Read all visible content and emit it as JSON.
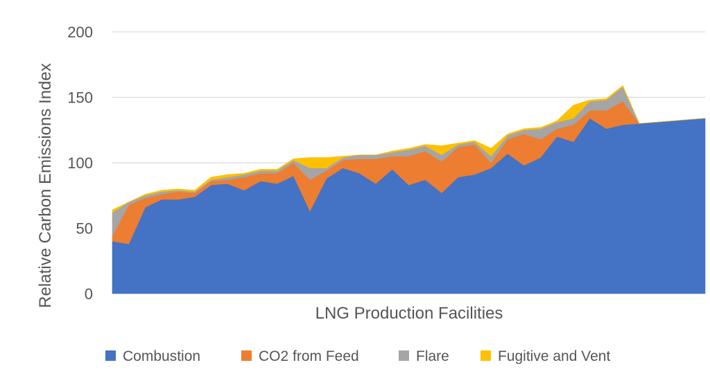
{
  "chart_data": {
    "type": "area",
    "stacked": true,
    "title": "",
    "xlabel": "LNG Production Facilities",
    "ylabel": "Relative Carbon Emissions Index",
    "ylim": [
      0,
      200
    ],
    "yticks": [
      0,
      50,
      100,
      150,
      200
    ],
    "grid": true,
    "legend_position": "bottom",
    "x": [
      1,
      2,
      3,
      4,
      5,
      6,
      7,
      8,
      9,
      10,
      11,
      12,
      13,
      14,
      15,
      16,
      17,
      18,
      19,
      20,
      21,
      22,
      23,
      24,
      25,
      26,
      27,
      28,
      29,
      30,
      31,
      32,
      33,
      34,
      35,
      36,
      37
    ],
    "series": [
      {
        "name": "Combustion",
        "color": "#4472C4",
        "values": [
          40,
          38,
          66,
          72,
          72,
          74,
          83,
          84,
          79,
          86,
          84,
          90,
          63,
          88,
          96,
          92,
          84,
          95,
          83,
          87,
          77,
          89,
          91,
          96,
          107,
          98,
          104,
          120,
          116,
          134,
          126,
          129,
          130,
          131,
          132,
          133,
          134
        ]
      },
      {
        "name": "CO2 from Feed",
        "color": "#ED7D31",
        "values": [
          4,
          30,
          7,
          4,
          6,
          3,
          3,
          3,
          10,
          6,
          8,
          10,
          24,
          6,
          6,
          11,
          19,
          10,
          22,
          22,
          24,
          23,
          23,
          4,
          11,
          24,
          14,
          6,
          13,
          6,
          14,
          18,
          0,
          0,
          0,
          0,
          0
        ]
      },
      {
        "name": "Flare",
        "color": "#A5A5A5",
        "values": [
          18,
          2,
          2,
          2,
          1,
          1,
          1,
          2,
          2,
          2,
          2,
          2,
          9,
          2,
          2,
          3,
          3,
          3,
          5,
          4,
          5,
          2,
          2,
          5,
          3,
          3,
          8,
          5,
          5,
          7,
          8,
          11,
          0,
          0,
          0,
          0,
          0
        ]
      },
      {
        "name": "Fugitive and Vent",
        "color": "#FFC000",
        "values": [
          2,
          0,
          1,
          1,
          1,
          1,
          2,
          2,
          1,
          1,
          1,
          1,
          8,
          8,
          1,
          0,
          0,
          1,
          1,
          1,
          7,
          1,
          1,
          6,
          1,
          1,
          1,
          1,
          10,
          1,
          1,
          1,
          0,
          0,
          0,
          0,
          0
        ]
      }
    ]
  }
}
